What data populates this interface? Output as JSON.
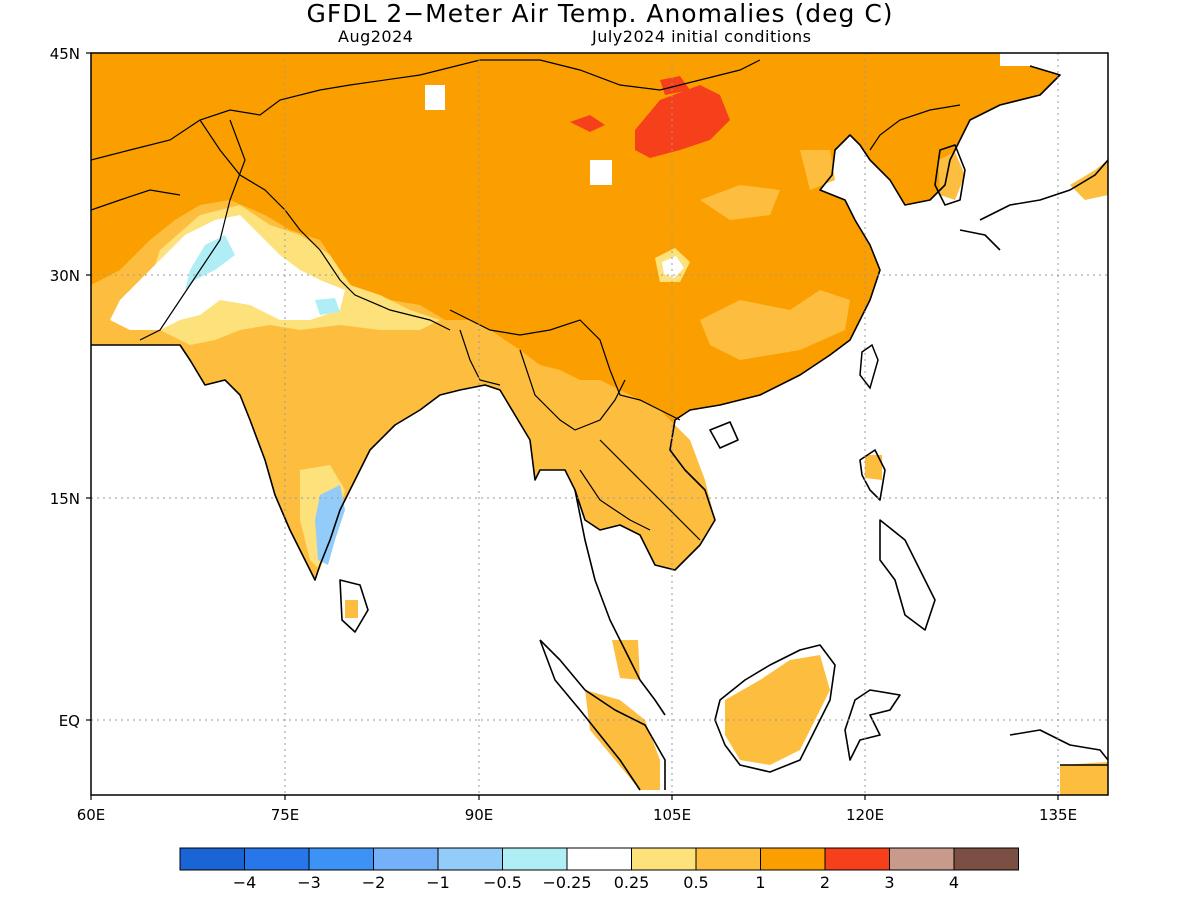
{
  "title": "GFDL 2−Meter Air Temp. Anomalies (deg C)",
  "valid_month": "Aug2024",
  "initial_conditions": "July2024 initial conditions",
  "lat_labels": [
    "45N",
    "30N",
    "15N",
    "EQ"
  ],
  "lon_labels": [
    "60E",
    "75E",
    "90E",
    "105E",
    "120E",
    "135E"
  ],
  "colorbar": {
    "colors": [
      "#1b64d6",
      "#2777ea",
      "#3c93f5",
      "#74b1f8",
      "#93ccf8",
      "#b0eef6",
      "#ffffff",
      "#fde17a",
      "#fdbe3f",
      "#fb9f00",
      "#f6401c",
      "#c89a8b",
      "#7b4f44"
    ],
    "labels": [
      "−4",
      "−3",
      "−2",
      "−1",
      "−0.5",
      "−0.25",
      "0.25",
      "0.5",
      "1",
      "2",
      "3",
      "4"
    ]
  },
  "palette": {
    "land_base": "#fb9f00",
    "ocean": "#ffffff",
    "coast": "#000000"
  }
}
